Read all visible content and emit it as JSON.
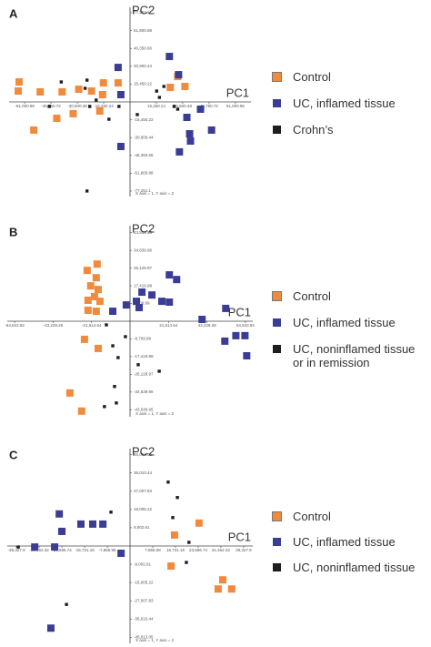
{
  "chart_data": [
    {
      "type": "scatter",
      "panel": "A",
      "xlabel": "PC1",
      "ylabel": "PC2",
      "note": "X axis = 1, Y axis = 2",
      "xlim": [
        -70000,
        70000
      ],
      "ylim": [
        -82000,
        82000
      ],
      "xticks": [
        {
          "value": -61000.96,
          "label": "-61,000.96"
        },
        {
          "value": -45750.72,
          "label": "-45,750.72"
        },
        {
          "value": -30500.48,
          "label": "-30,500.48"
        },
        {
          "value": -15250.24,
          "label": "-15,250.24"
        },
        {
          "value": 15250.24,
          "label": "15,250.24"
        },
        {
          "value": 30500.48,
          "label": "30,500.48"
        },
        {
          "value": 45750.72,
          "label": "45,750.72"
        },
        {
          "value": 61000.96,
          "label": "61,000.96"
        }
      ],
      "yticks": [
        {
          "value": -77251.1,
          "label": "-77,251.1"
        },
        {
          "value": -61800.88,
          "label": "-61,800.88"
        },
        {
          "value": -46350.66,
          "label": "-46,350.66"
        },
        {
          "value": -30900.44,
          "label": "-30,900.44"
        },
        {
          "value": -15450.22,
          "label": "-15,450.22"
        },
        {
          "value": 15450.22,
          "label": "15,450.22"
        },
        {
          "value": 30900.44,
          "label": "30,900.44"
        },
        {
          "value": 46350.66,
          "label": "46,350.66"
        },
        {
          "value": 61800.88,
          "label": "61,800.88"
        },
        {
          "value": 77251.1,
          "label": "77,251.1"
        }
      ],
      "series": [
        {
          "name": "Control",
          "color": "#f08a3c",
          "x": [
            -64200,
            -64700,
            -52000,
            -39300,
            -29700,
            -22300,
            -15400,
            -6900,
            -15900,
            -55700,
            -42400,
            -32900,
            -17500,
            27600,
            31800,
            23300
          ],
          "values": [
            17300,
            9400,
            8700,
            8700,
            11000,
            9400,
            16500,
            16500,
            6300,
            -24400,
            -14200,
            -10200,
            -7900,
            22000,
            13400,
            12600
          ]
        },
        {
          "name": "UC, inflamed tissue",
          "color": "#3a3d94",
          "x": [
            -6900,
            22800,
            28100,
            -5300,
            32900,
            40800,
            47200,
            34500,
            35000,
            28600,
            -5300
          ],
          "values": [
            29900,
            39400,
            23600,
            6300,
            -13400,
            -6300,
            -24400,
            -27600,
            -33900,
            -43300,
            -38600
          ]
        },
        {
          "name": "Crohn’s",
          "color": "#1e1e1e",
          "x": [
            -39800,
            -24900,
            -26000,
            -19600,
            -12200,
            -23300,
            -46700,
            -6400,
            19600,
            17000,
            15400,
            25500,
            27600,
            4200,
            -24900
          ],
          "values": [
            17300,
            18900,
            11800,
            1600,
            -15000,
            -3900,
            -3900,
            -3900,
            13400,
            3900,
            9400,
            -3900,
            -6300,
            -11000,
            -77200
          ]
        }
      ]
    },
    {
      "type": "scatter",
      "panel": "B",
      "xlabel": "PC1",
      "ylabel": "PC2",
      "note": "X axis = 1, Y axis = 2",
      "xlim": [
        -69000,
        69000
      ],
      "ylim": [
        -47000,
        47000
      ],
      "xticks": [
        {
          "value": -64843.92,
          "label": "-64,843.92"
        },
        {
          "value": -43229.28,
          "label": "-43,229.28"
        },
        {
          "value": -21614.64,
          "label": "-21,614.64"
        },
        {
          "value": 21614.64,
          "label": "21,614.64"
        },
        {
          "value": 43229.28,
          "label": "43,229.28"
        },
        {
          "value": 64843.92,
          "label": "64,843.92"
        }
      ],
      "yticks": [
        {
          "value": -43549.95,
          "label": "-43,549.95"
        },
        {
          "value": -34839.96,
          "label": "-34,839.96"
        },
        {
          "value": -26129.97,
          "label": "-26,129.97"
        },
        {
          "value": -17419.98,
          "label": "-17,419.98"
        },
        {
          "value": -8709.99,
          "label": "-8,709.99"
        },
        {
          "value": 8709.99,
          "label": "8,709.99"
        },
        {
          "value": 17419.98,
          "label": "17,419.98"
        },
        {
          "value": 26129.97,
          "label": "26,129.97"
        },
        {
          "value": 34839.96,
          "label": "34,839.96"
        },
        {
          "value": 43549.95,
          "label": "43,549.95"
        }
      ],
      "series": [
        {
          "name": "Control",
          "color": "#f08a3c",
          "x": [
            -18500,
            -24100,
            -19000,
            -22100,
            -17900,
            -20000,
            -23600,
            -16900,
            -23600,
            -19000,
            -25600,
            -17900,
            -33800,
            -27200
          ],
          "values": [
            28100,
            25000,
            21400,
            17400,
            15600,
            12100,
            10300,
            9800,
            5400,
            4900,
            -8900,
            -13400,
            -35300,
            -44200
          ]
        },
        {
          "name": "UC, inflamed tissue",
          "color": "#3a3d94",
          "x": [
            22100,
            26200,
            6700,
            12300,
            3600,
            17900,
            22100,
            -2100,
            5100,
            -9700,
            53800,
            40500,
            53300,
            59500,
            64600,
            65600
          ],
          "values": [
            22800,
            20500,
            14300,
            12900,
            9800,
            9800,
            9400,
            8000,
            6700,
            4900,
            6300,
            900,
            -9800,
            -7100,
            -7100,
            -17000
          ]
        },
        {
          "name": "UC, noninflamed tissue or in remission",
          "color": "#1e1e1e",
          "x": [
            -13300,
            -9700,
            -6700,
            4600,
            16400,
            -14400,
            -7700,
            -8700,
            -2600
          ],
          "values": [
            -1800,
            -12100,
            -17900,
            -21400,
            -24600,
            -42000,
            -40200,
            -32100,
            -7600
          ]
        }
      ]
    },
    {
      "type": "scatter",
      "panel": "C",
      "xlabel": "PC1",
      "ylabel": "PC2",
      "note": "X axis = 1, Y axis = 2",
      "xlim": [
        -42500,
        42500
      ],
      "ylim": [
        -48000,
        48000
      ],
      "xticks": [
        {
          "value": -39327.9,
          "label": "-39,327.9"
        },
        {
          "value": -31462.32,
          "label": "-31,462.32"
        },
        {
          "value": -23596.74,
          "label": "-23,596.74"
        },
        {
          "value": -15731.16,
          "label": "-15,731.16"
        },
        {
          "value": -7865.58,
          "label": "-7,865.58"
        },
        {
          "value": 7865.58,
          "label": "7,865.58"
        },
        {
          "value": 15731.16,
          "label": "15,731.16"
        },
        {
          "value": 23596.74,
          "label": "23,596.74"
        },
        {
          "value": 31462.32,
          "label": "31,462.32"
        },
        {
          "value": 39327.9,
          "label": "39,327.9"
        }
      ],
      "yticks": [
        {
          "value": -45013.05,
          "label": "-45,013.05"
        },
        {
          "value": -36010.44,
          "label": "-36,010.44"
        },
        {
          "value": -27007.83,
          "label": "-27,007.83"
        },
        {
          "value": -18005.22,
          "label": "-18,005.22"
        },
        {
          "value": -9002.61,
          "label": "-9,002.61"
        },
        {
          "value": 9002.61,
          "label": "9,002.61"
        },
        {
          "value": 18005.22,
          "label": "18,005.22"
        },
        {
          "value": 27007.83,
          "label": "27,007.83"
        },
        {
          "value": 36010.44,
          "label": "36,010.44"
        },
        {
          "value": 45013.05,
          "label": "45,013.05"
        }
      ],
      "series": [
        {
          "name": "Control",
          "color": "#f08a3c",
          "x": [
            23900,
            15400,
            14200,
            32100,
            30500,
            35200
          ],
          "values": [
            11300,
            5400,
            -9900,
            -16700,
            -21200,
            -21200
          ]
        },
        {
          "name": "UC, inflamed tissue",
          "color": "#3a3d94",
          "x": [
            -24500,
            -23600,
            -17000,
            -12900,
            -9400,
            -3100,
            -33000,
            -26100,
            -27400
          ],
          "values": [
            15800,
            7200,
            10800,
            10800,
            10800,
            -3600,
            -500,
            -500,
            -40500
          ]
        },
        {
          "name": "UC, noninflamed tissue",
          "color": "#1e1e1e",
          "x": [
            13200,
            16400,
            -6600,
            14800,
            20400,
            19500,
            -22000,
            -38700
          ],
          "values": [
            31500,
            23900,
            16700,
            14000,
            1800,
            -8100,
            -28800,
            -500
          ]
        }
      ]
    }
  ]
}
